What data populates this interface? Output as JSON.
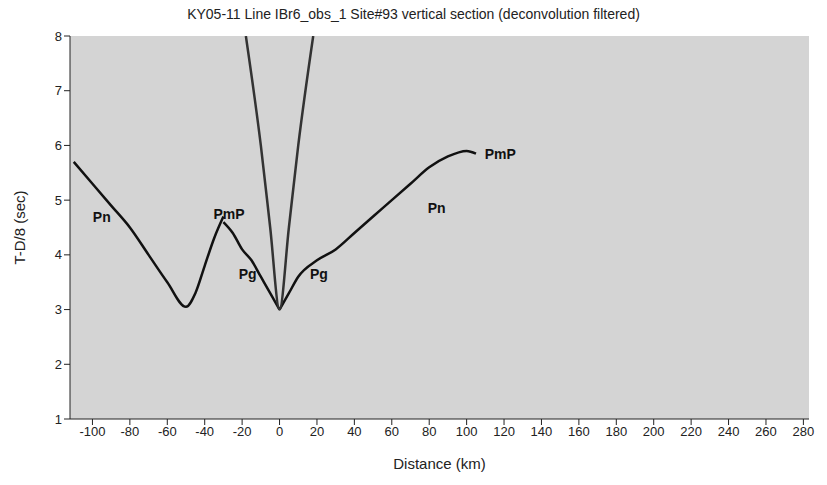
{
  "chart_data": {
    "type": "line",
    "title": "KY05-11 Line IBr6_obs_1 Site#93 vertical section (deconvolution filtered)",
    "x_label": "Distance (km)",
    "y_label": "T-D/8 (sec)",
    "xlim": [
      -112,
      283
    ],
    "xticks": [
      -100,
      -80,
      -60,
      -40,
      -20,
      0,
      20,
      40,
      60,
      80,
      100,
      120,
      140,
      160,
      180,
      200,
      220,
      240,
      260,
      280
    ],
    "ylim": [
      1,
      8
    ],
    "yticks": [
      1,
      2,
      3,
      4,
      5,
      6,
      7,
      8
    ],
    "grid": false,
    "series": [
      {
        "color": "#111111",
        "x": [
          -110,
          -100,
          -90,
          -80,
          -70,
          -60,
          -50,
          -45,
          -40,
          -35,
          -30
        ],
        "values": [
          5.7,
          5.3,
          4.9,
          4.5,
          4.0,
          3.5,
          3.05,
          3.3,
          3.8,
          4.3,
          4.7
        ]
      },
      {
        "color": "#111111",
        "x": [
          -30,
          -25,
          -20,
          -15,
          -10,
          -5,
          0
        ],
        "values": [
          4.6,
          4.4,
          4.1,
          3.9,
          3.6,
          3.3,
          3.0
        ]
      },
      {
        "color": "#111111",
        "x": [
          0,
          5,
          10,
          20,
          30,
          40,
          50,
          60,
          70,
          80,
          90,
          100,
          105
        ],
        "values": [
          3.0,
          3.3,
          3.6,
          3.9,
          4.1,
          4.4,
          4.7,
          5.0,
          5.3,
          5.6,
          5.8,
          5.9,
          5.85
        ]
      },
      {
        "color": "#333333",
        "x": [
          -18,
          -10,
          -5,
          0,
          5,
          10,
          18
        ],
        "values": [
          8.0,
          6.0,
          4.5,
          3.0,
          4.5,
          6.0,
          8.0
        ]
      }
    ],
    "annotations": [
      {
        "text": "Pn",
        "x": -95,
        "y": 4.7
      },
      {
        "text": "PmP",
        "x": -27,
        "y": 4.75
      },
      {
        "text": "Pg",
        "x": -17,
        "y": 3.65
      },
      {
        "text": "Pg",
        "x": 21,
        "y": 3.65
      },
      {
        "text": "PmP",
        "x": 118,
        "y": 5.85
      },
      {
        "text": "Pn",
        "x": 84,
        "y": 4.85
      }
    ]
  }
}
